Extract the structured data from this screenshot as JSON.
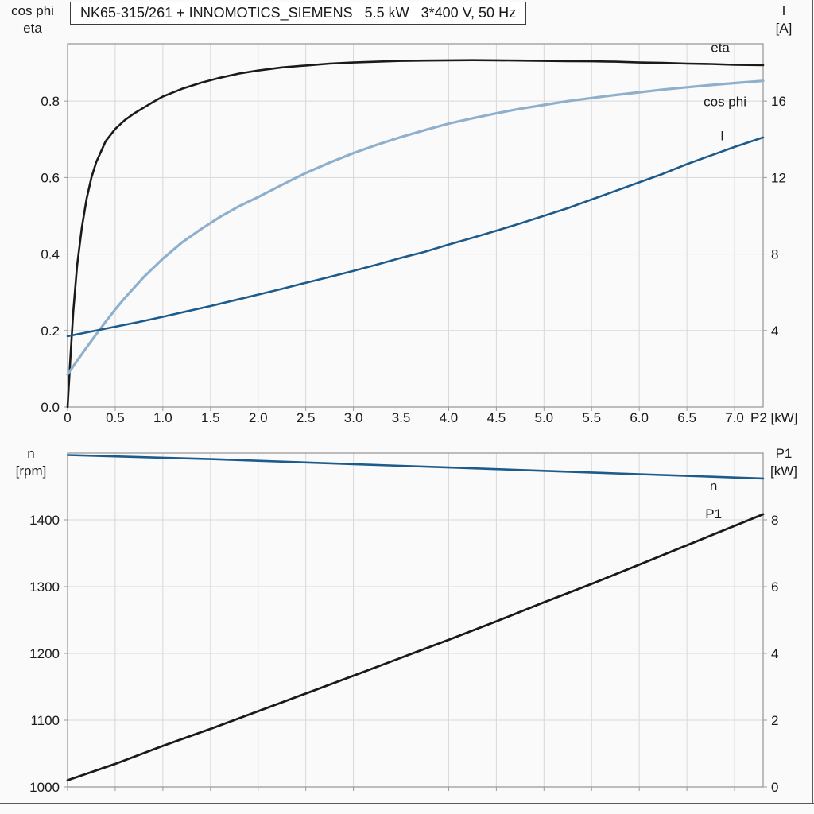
{
  "colors": {
    "black": "#1a1a1a",
    "darkblue": "#1d5b8c",
    "lightblue": "#8fb0cd",
    "grid": "#d8d8d8",
    "frame": "#9a9a9a",
    "background": "#fafafa",
    "title_border": "#3c3c3c",
    "text": "#1a1a1a"
  },
  "chart_data": [
    {
      "type": "line",
      "title": "NK65-315/261 + INNOMOTICS_SIEMENS   5.5 kW   3*400 V, 50 Hz",
      "xlabel": "P2 [kW]",
      "xlim": [
        0,
        7.3
      ],
      "grid": true,
      "x_ticks": {
        "values": [
          0,
          0.5,
          1.0,
          1.5,
          2.0,
          2.5,
          3.0,
          3.5,
          4.0,
          4.5,
          5.0,
          5.5,
          6.0,
          6.5,
          7.0
        ],
        "labels": [
          "0",
          "0.5",
          "1.0",
          "1.5",
          "2.0",
          "2.5",
          "3.0",
          "3.5",
          "4.0",
          "4.5",
          "5.0",
          "5.5",
          "6.0",
          "6.5",
          "7.0"
        ]
      },
      "left_axis": {
        "title_lines": [
          "cos phi",
          "eta"
        ],
        "lim": [
          0,
          0.95
        ],
        "ticks": {
          "values": [
            0.0,
            0.2,
            0.4,
            0.6,
            0.8
          ],
          "labels": [
            "0.0",
            "0.2",
            "0.4",
            "0.6",
            "0.8"
          ]
        }
      },
      "right_axis": {
        "title_lines": [
          "I",
          "[A]"
        ],
        "lim": [
          0,
          19
        ],
        "ticks": {
          "values": [
            4,
            8,
            12,
            16
          ],
          "labels": [
            "4",
            "8",
            "12",
            "16"
          ]
        }
      },
      "series": [
        {
          "name": "eta",
          "axis": "left",
          "color_key": "black",
          "width": 2.6,
          "label": {
            "text": "eta",
            "x": 6.85,
            "y": 0.928,
            "anchor": "middle",
            "color_key": "black"
          },
          "x": [
            0,
            0.03,
            0.06,
            0.1,
            0.15,
            0.2,
            0.25,
            0.3,
            0.4,
            0.5,
            0.6,
            0.7,
            0.8,
            0.9,
            1.0,
            1.2,
            1.4,
            1.6,
            1.8,
            2.0,
            2.25,
            2.5,
            2.75,
            3.0,
            3.25,
            3.5,
            3.75,
            4.0,
            4.25,
            4.5,
            4.75,
            5.0,
            5.25,
            5.5,
            5.75,
            6.0,
            6.25,
            6.5,
            6.75,
            7.0,
            7.15,
            7.3
          ],
          "y": [
            0,
            0.13,
            0.25,
            0.37,
            0.47,
            0.545,
            0.6,
            0.64,
            0.695,
            0.727,
            0.75,
            0.768,
            0.783,
            0.798,
            0.812,
            0.832,
            0.848,
            0.861,
            0.872,
            0.88,
            0.888,
            0.893,
            0.898,
            0.901,
            0.903,
            0.905,
            0.906,
            0.9065,
            0.907,
            0.9065,
            0.906,
            0.905,
            0.9045,
            0.904,
            0.903,
            0.901,
            0.9,
            0.898,
            0.897,
            0.895,
            0.8945,
            0.894
          ]
        },
        {
          "name": "cos phi",
          "axis": "left",
          "color_key": "lightblue",
          "width": 3.2,
          "label": {
            "text": "cos phi",
            "x": 6.9,
            "y": 0.787,
            "anchor": "middle",
            "color_key": "lightblue"
          },
          "x": [
            0,
            0.1,
            0.2,
            0.3,
            0.4,
            0.5,
            0.6,
            0.8,
            1.0,
            1.2,
            1.4,
            1.6,
            1.8,
            2.0,
            2.25,
            2.5,
            2.75,
            3.0,
            3.25,
            3.5,
            3.75,
            4.0,
            4.25,
            4.5,
            4.75,
            5.0,
            5.25,
            5.5,
            5.75,
            6.0,
            6.25,
            6.5,
            6.75,
            7.0,
            7.3
          ],
          "y": [
            0.085,
            0.121,
            0.156,
            0.19,
            0.223,
            0.255,
            0.285,
            0.34,
            0.388,
            0.43,
            0.465,
            0.497,
            0.525,
            0.549,
            0.581,
            0.612,
            0.639,
            0.664,
            0.686,
            0.706,
            0.724,
            0.741,
            0.755,
            0.768,
            0.78,
            0.79,
            0.8,
            0.808,
            0.816,
            0.823,
            0.83,
            0.836,
            0.842,
            0.847,
            0.853
          ]
        },
        {
          "name": "I",
          "axis": "right",
          "color_key": "darkblue",
          "width": 2.6,
          "label": {
            "text": "I",
            "x": 6.87,
            "y": 13.95,
            "anchor": "middle",
            "color_key": "darkblue"
          },
          "x": [
            0,
            0.25,
            0.5,
            0.75,
            1.0,
            1.25,
            1.5,
            1.75,
            2.0,
            2.25,
            2.5,
            2.75,
            3.0,
            3.25,
            3.5,
            3.75,
            4.0,
            4.25,
            4.5,
            4.75,
            5.0,
            5.25,
            5.5,
            5.75,
            6.0,
            6.25,
            6.5,
            6.75,
            7.0,
            7.3
          ],
          "y": [
            3.7,
            3.95,
            4.2,
            4.45,
            4.72,
            5.0,
            5.28,
            5.58,
            5.88,
            6.18,
            6.5,
            6.8,
            7.12,
            7.45,
            7.8,
            8.12,
            8.5,
            8.85,
            9.22,
            9.6,
            10.0,
            10.4,
            10.85,
            11.3,
            11.75,
            12.2,
            12.7,
            13.15,
            13.6,
            14.1
          ]
        }
      ]
    },
    {
      "type": "line",
      "title": "",
      "xlabel": "",
      "xlim": [
        0,
        7.3
      ],
      "grid": true,
      "x_ticks": {
        "values": [
          0,
          0.5,
          1.0,
          1.5,
          2.0,
          2.5,
          3.0,
          3.5,
          4.0,
          4.5,
          5.0,
          5.5,
          6.0,
          6.5,
          7.0
        ],
        "labels": []
      },
      "left_axis": {
        "title_lines": [
          "n",
          "[rpm]"
        ],
        "lim": [
          1000,
          1500
        ],
        "ticks": {
          "values": [
            1000,
            1100,
            1200,
            1300,
            1400
          ],
          "labels": [
            "1000",
            "1100",
            "1200",
            "1300",
            "1400"
          ]
        }
      },
      "right_axis": {
        "title_lines": [
          "P1",
          "[kW]"
        ],
        "lim": [
          0,
          10
        ],
        "ticks": {
          "values": [
            0,
            2,
            4,
            6,
            8
          ],
          "labels": [
            "0",
            "2",
            "4",
            "6",
            "8"
          ]
        }
      },
      "series": [
        {
          "name": "n",
          "axis": "left",
          "color_key": "darkblue",
          "width": 2.6,
          "label": {
            "text": "n",
            "x": 6.78,
            "y": 1444,
            "anchor": "middle",
            "color_key": "darkblue"
          },
          "x": [
            0,
            0.5,
            1.0,
            1.5,
            2.0,
            2.5,
            3.0,
            3.5,
            4.0,
            4.5,
            5.0,
            5.5,
            6.0,
            6.5,
            7.0,
            7.3
          ],
          "y": [
            1497,
            1495,
            1493,
            1491,
            1488.5,
            1486,
            1483.5,
            1481,
            1478.5,
            1476,
            1473.5,
            1471,
            1468.5,
            1466,
            1463.5,
            1462
          ]
        },
        {
          "name": "P1",
          "axis": "right",
          "color_key": "black",
          "width": 2.8,
          "label": {
            "text": "P1",
            "x": 6.78,
            "y": 8.05,
            "anchor": "middle",
            "color_key": "black"
          },
          "x": [
            0,
            0.5,
            1.0,
            1.5,
            2.0,
            2.5,
            3.0,
            3.5,
            4.0,
            4.5,
            5.0,
            5.5,
            6.0,
            6.5,
            7.0,
            7.3
          ],
          "y": [
            0.2,
            0.69,
            1.23,
            1.74,
            2.27,
            2.8,
            3.33,
            3.87,
            4.41,
            4.96,
            5.53,
            6.08,
            6.66,
            7.24,
            7.82,
            8.17
          ]
        }
      ]
    }
  ]
}
